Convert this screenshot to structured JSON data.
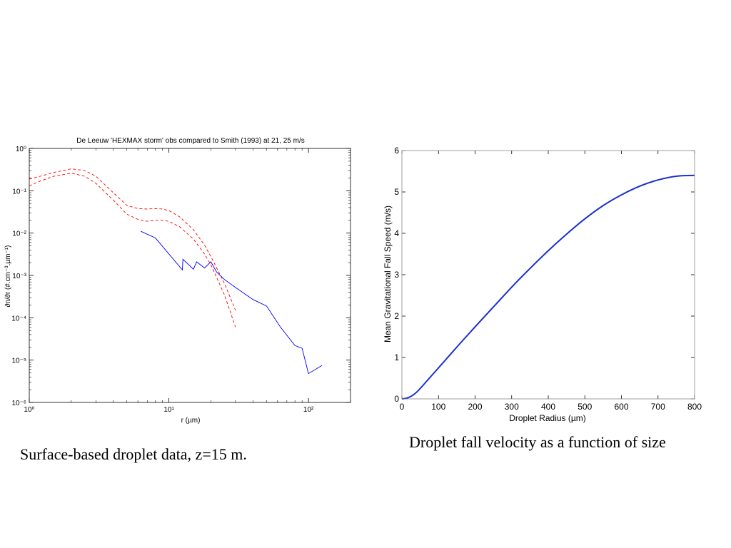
{
  "chart_data": [
    {
      "type": "line",
      "title": "De Leeuw 'HEXMAX storm' obs compared to Smith (1993) at 21, 25 m/s",
      "xlabel": "r (µm)",
      "ylabel": "∂n/∂r (#.cm⁻³.µm⁻¹)",
      "xscale": "log",
      "yscale": "log",
      "xlim": [
        1,
        200
      ],
      "ylim": [
        1e-06,
        1
      ],
      "x_tick_labels": [
        "10⁰",
        "10¹",
        "10²"
      ],
      "y_tick_labels": [
        "10⁰",
        "10⁻¹",
        "10⁻²",
        "10⁻³",
        "10⁻⁴",
        "10⁻⁵",
        "10⁻⁶"
      ],
      "grid": false,
      "series": [
        {
          "style": "solid",
          "color": "#0000ff",
          "x": [
            6.3,
            8,
            12.5,
            12.6,
            15,
            15.8,
            18,
            20,
            22,
            25,
            30,
            40,
            50,
            63,
            80,
            90,
            100,
            125
          ],
          "y": [
            0.011,
            0.0077,
            0.00135,
            0.0024,
            0.0014,
            0.0021,
            0.0015,
            0.0021,
            0.0012,
            0.0008,
            0.00052,
            0.00027,
            0.00019,
            6e-05,
            2.2e-05,
            1.9e-05,
            4.8e-06,
            7.5e-06
          ]
        },
        {
          "style": "dashed",
          "color": "#ff0000",
          "x": [
            1,
            1.2,
            1.5,
            2,
            2.5,
            3,
            4,
            5,
            6,
            7,
            8,
            9,
            10,
            12,
            15,
            18,
            20,
            25,
            30
          ],
          "y": [
            0.19,
            0.22,
            0.27,
            0.33,
            0.3,
            0.22,
            0.09,
            0.045,
            0.038,
            0.037,
            0.038,
            0.037,
            0.034,
            0.024,
            0.012,
            0.0052,
            0.0028,
            0.00065,
            0.00015
          ]
        },
        {
          "style": "dashed",
          "color": "#ff0000",
          "x": [
            1,
            1.2,
            1.5,
            2,
            2.5,
            3,
            4,
            5,
            6,
            7,
            8,
            9,
            10,
            12,
            15,
            18,
            20,
            25,
            30
          ],
          "y": [
            0.13,
            0.17,
            0.22,
            0.26,
            0.22,
            0.15,
            0.06,
            0.028,
            0.021,
            0.019,
            0.02,
            0.02,
            0.019,
            0.014,
            0.0072,
            0.0032,
            0.0018,
            0.00035,
            6e-05
          ]
        }
      ]
    },
    {
      "type": "line",
      "xlabel": "Droplet Radius (µm)",
      "ylabel": "Mean Gravitational Fall Speed (m/s)",
      "xlim": [
        0,
        800
      ],
      "ylim": [
        0,
        6
      ],
      "x_ticks": [
        0,
        100,
        200,
        300,
        400,
        500,
        600,
        700,
        800
      ],
      "y_ticks": [
        0,
        1,
        2,
        3,
        4,
        5,
        6
      ],
      "grid": false,
      "series": [
        {
          "color": "#1a2fd0",
          "x": [
            0,
            10,
            20,
            30,
            40,
            50,
            75,
            100,
            150,
            200,
            250,
            300,
            350,
            400,
            450,
            500,
            550,
            600,
            650,
            700,
            750,
            800
          ],
          "y": [
            0,
            0.01,
            0.04,
            0.09,
            0.16,
            0.25,
            0.5,
            0.75,
            1.25,
            1.74,
            2.22,
            2.7,
            3.15,
            3.58,
            3.98,
            4.35,
            4.67,
            4.93,
            5.14,
            5.29,
            5.38,
            5.4
          ]
        }
      ]
    }
  ],
  "captions": {
    "left": "Surface-based droplet data, z=15 m.",
    "right": "Droplet fall velocity as a function of size"
  }
}
